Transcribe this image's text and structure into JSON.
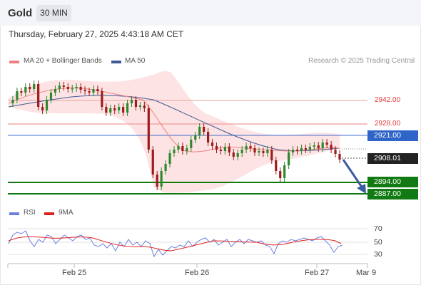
{
  "header": {
    "title": "Gold",
    "timeframe": "30 MIN"
  },
  "datetime": "Thursday, February 27, 2025 4:43:18 AM CET",
  "legend": {
    "ma20_label": "MA 20 + Bollinger Bands",
    "ma50_label": "MA 50",
    "ma20_color": "#f08080",
    "ma50_color": "#3d5a99",
    "credit": "Research © 2025 Trading Central"
  },
  "price_levels": {
    "r2": "2942.00",
    "r1": "2928.00",
    "pivot": "2921.00",
    "last": "2908.01",
    "s1": "2894.00",
    "s2": "2887.00"
  },
  "colors": {
    "resistance": "#e63b3b",
    "pivot": "#2f64c8",
    "support": "#127a12",
    "last": "#222222",
    "candle_up": "#2c8a2c",
    "candle_down": "#9e1c1c",
    "bollinger_fill": "#fde3e3"
  },
  "rsi_panel": {
    "rsi_label": "RSI",
    "ma_label": "9MA",
    "rsi_color": "#6b7fe0",
    "ma_color": "#e02020",
    "ticks": [
      "70",
      "50",
      "30"
    ]
  },
  "x_axis": [
    "Feb 25",
    "Feb 26",
    "Feb 27",
    "Mar 9"
  ]
}
